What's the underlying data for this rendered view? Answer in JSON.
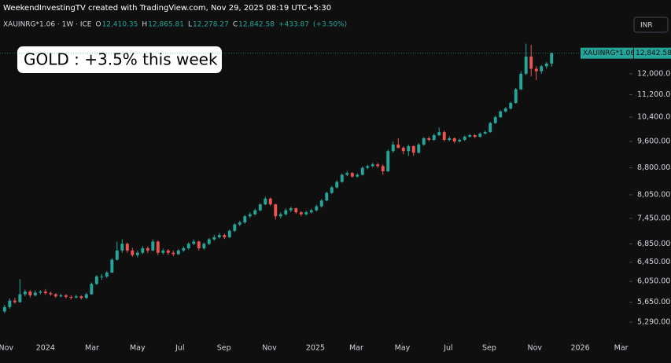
{
  "header": "WeekendInvestingTV created with TradingView.com, Nov 29, 2025 08:19 UTC+5:30",
  "currency": "INR",
  "chart_data": {
    "type": "candlestick",
    "symbol": "XAUINRG*1.06 · 1W · ICE",
    "ohlc_legend": [
      {
        "key": "O",
        "value": 12410.35,
        "label": "12,410.35"
      },
      {
        "key": "H",
        "value": 12865.81,
        "label": "12,865.81"
      },
      {
        "key": "L",
        "value": 12278.27,
        "label": "12,278.27"
      },
      {
        "key": "C",
        "value": 12842.58,
        "label": "12,842.58"
      }
    ],
    "change": {
      "value": 433.87,
      "label": "+433.87"
    },
    "change_pct": {
      "value": 3.5,
      "label": "(+3.50%)"
    },
    "annotation": "GOLD : +3.5% this week",
    "price_tag": {
      "name": "XAUINRG*1.06",
      "value": 12842.58,
      "label": "12,842.58"
    },
    "log_scale": true,
    "grid": false,
    "up_color": "#26a69a",
    "down_color": "#ef5350",
    "ylim": [
      5023,
      13620
    ],
    "yticks": [
      {
        "value": 5290,
        "label": "5,290.00"
      },
      {
        "value": 5650,
        "label": "5,650.00"
      },
      {
        "value": 6050,
        "label": "6,050.00"
      },
      {
        "value": 6450,
        "label": "6,450.00"
      },
      {
        "value": 6850,
        "label": "6,850.00"
      },
      {
        "value": 7450,
        "label": "7,450.00"
      },
      {
        "value": 8050,
        "label": "8,050.00"
      },
      {
        "value": 8800,
        "label": "8,800.00"
      },
      {
        "value": 9600,
        "label": "9,600.00"
      },
      {
        "value": 10400,
        "label": "10,400.00"
      },
      {
        "value": 11200,
        "label": "11,200.00"
      },
      {
        "value": 12000,
        "label": "12,000.00"
      }
    ],
    "xlim": [
      -0.9,
      122.2
    ],
    "xticks": [
      {
        "value": 0.3,
        "label": "Nov"
      },
      {
        "value": 8,
        "label": "2024"
      },
      {
        "value": 17.1,
        "label": "Mar"
      },
      {
        "value": 26,
        "label": "May"
      },
      {
        "value": 34.3,
        "label": "Jul"
      },
      {
        "value": 42.9,
        "label": "Sep"
      },
      {
        "value": 51.8,
        "label": "Nov"
      },
      {
        "value": 60.8,
        "label": "2025"
      },
      {
        "value": 68.8,
        "label": "Mar"
      },
      {
        "value": 77.8,
        "label": "May"
      },
      {
        "value": 86.8,
        "label": "Jul"
      },
      {
        "value": 94.8,
        "label": "Sep"
      },
      {
        "value": 103.7,
        "label": "Nov"
      },
      {
        "value": 112.6,
        "label": "2026"
      },
      {
        "value": 120.6,
        "label": "Mar"
      }
    ],
    "open": [
      5480,
      5560,
      5680,
      5650,
      5800,
      5850,
      5780,
      5830,
      5850,
      5820,
      5800,
      5760,
      5780,
      5750,
      5740,
      5760,
      5730,
      5800,
      6000,
      6150,
      6150,
      6230,
      6500,
      6700,
      6850,
      6700,
      6600,
      6650,
      6750,
      6700,
      6900,
      6650,
      6700,
      6650,
      6620,
      6700,
      6750,
      6850,
      6900,
      6750,
      6850,
      6950,
      7000,
      7050,
      7000,
      7150,
      7300,
      7350,
      7500,
      7550,
      7650,
      7800,
      7950,
      7800,
      7500,
      7550,
      7650,
      7700,
      7600,
      7550,
      7600,
      7650,
      7750,
      7900,
      8100,
      8250,
      8400,
      8600,
      8650,
      8550,
      8600,
      8800,
      8850,
      8900,
      8850,
      8700,
      9300,
      9500,
      9400,
      9300,
      9450,
      9250,
      9500,
      9700,
      9650,
      9800,
      9900,
      9650,
      9700,
      9600,
      9650,
      9750,
      9800,
      9750,
      9850,
      9900,
      10200,
      10400,
      10600,
      10700,
      10900,
      11400,
      12000,
      12700,
      12200,
      12100,
      12300,
      12410.35
    ],
    "high": [
      5600,
      5720,
      5730,
      6100,
      5890,
      5880,
      5870,
      5880,
      5900,
      5850,
      5820,
      5810,
      5800,
      5780,
      5790,
      5780,
      5830,
      6030,
      6180,
      6200,
      6260,
      6530,
      6900,
      6950,
      6880,
      6760,
      6700,
      6800,
      6790,
      6950,
      6920,
      6740,
      6730,
      6700,
      6730,
      6790,
      6890,
      6950,
      6920,
      6880,
      6980,
      7050,
      7100,
      7080,
      7180,
      7330,
      7390,
      7530,
      7600,
      7690,
      7830,
      8000,
      7980,
      7820,
      7600,
      7700,
      7740,
      7720,
      7630,
      7640,
      7690,
      7790,
      7940,
      8130,
      8290,
      8450,
      8640,
      8700,
      8680,
      8640,
      8840,
      8890,
      8950,
      8940,
      8900,
      9350,
      9600,
      9700,
      9450,
      9500,
      9480,
      9550,
      9740,
      9760,
      9850,
      10050,
      9950,
      9760,
      9730,
      9690,
      9790,
      9840,
      9830,
      9890,
      9950,
      10240,
      10450,
      10640,
      10750,
      10950,
      11450,
      12100,
      13250,
      13200,
      12300,
      12350,
      12480,
      12865.81
    ],
    "low": [
      5450,
      5530,
      5620,
      5640,
      5760,
      5740,
      5760,
      5800,
      5790,
      5770,
      5730,
      5740,
      5720,
      5700,
      5720,
      5700,
      5710,
      5790,
      5980,
      6080,
      6120,
      6220,
      6480,
      6650,
      6650,
      6560,
      6550,
      6620,
      6640,
      6680,
      6600,
      6610,
      6600,
      6580,
      6600,
      6670,
      6720,
      6820,
      6700,
      6720,
      6820,
      6920,
      6970,
      6960,
      6980,
      7120,
      7260,
      7320,
      7460,
      7520,
      7620,
      7780,
      7760,
      7420,
      7450,
      7520,
      7600,
      7560,
      7500,
      7520,
      7570,
      7620,
      7720,
      7880,
      8070,
      8220,
      8380,
      8560,
      8520,
      8520,
      8580,
      8760,
      8820,
      8800,
      8600,
      8680,
      9250,
      9380,
      9200,
      9150,
      9150,
      9220,
      9460,
      9600,
      9620,
      9770,
      9600,
      9600,
      9540,
      9570,
      9620,
      9720,
      9700,
      9720,
      9820,
      9880,
      10170,
      10370,
      10560,
      10660,
      10870,
      11370,
      11950,
      11900,
      11750,
      12000,
      12200,
      12278.27
    ],
    "close": [
      5560,
      5680,
      5650,
      5800,
      5850,
      5780,
      5830,
      5850,
      5820,
      5800,
      5760,
      5780,
      5750,
      5740,
      5760,
      5730,
      5800,
      6000,
      6150,
      6150,
      6230,
      6500,
      6700,
      6850,
      6700,
      6600,
      6650,
      6750,
      6700,
      6900,
      6650,
      6700,
      6650,
      6620,
      6700,
      6750,
      6850,
      6900,
      6750,
      6850,
      6950,
      7000,
      7050,
      7000,
      7150,
      7300,
      7350,
      7500,
      7550,
      7650,
      7800,
      7950,
      7800,
      7500,
      7550,
      7650,
      7700,
      7600,
      7550,
      7600,
      7650,
      7750,
      7900,
      8100,
      8250,
      8400,
      8600,
      8650,
      8550,
      8600,
      8800,
      8850,
      8900,
      8850,
      8700,
      9300,
      9500,
      9400,
      9300,
      9450,
      9250,
      9500,
      9700,
      9650,
      9800,
      9900,
      9650,
      9700,
      9600,
      9650,
      9750,
      9800,
      9750,
      9850,
      9900,
      10200,
      10400,
      10600,
      10700,
      10900,
      11400,
      12000,
      12700,
      12200,
      12100,
      12300,
      12410.35,
      12842.58
    ]
  }
}
